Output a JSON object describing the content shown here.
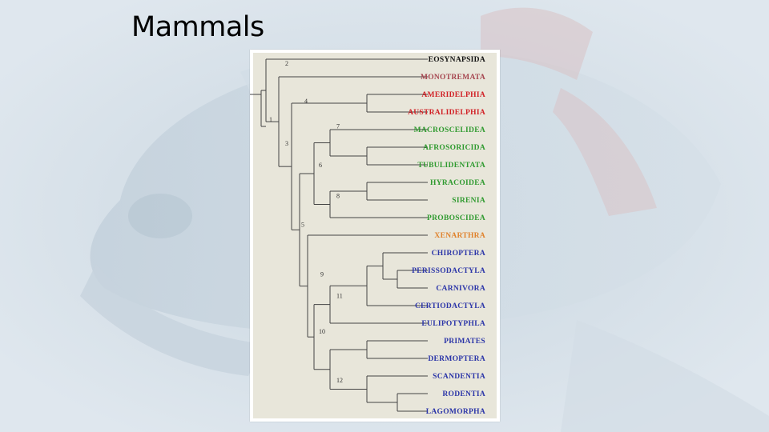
{
  "slide": {
    "title": "Mammals"
  },
  "colors": {
    "outgroup": "#111111",
    "monotremata": "#a5444e",
    "marsupials": "#d11f24",
    "afrotheria": "#2f9a2f",
    "xenarthra": "#e0822c",
    "boreoeutheria": "#2b35a8",
    "branch": "#444444",
    "panel": "#e8e6da"
  },
  "tree": {
    "node_labels": [
      "1",
      "2",
      "3",
      "4",
      "5",
      "6",
      "7",
      "8",
      "9",
      "10",
      "11",
      "12"
    ],
    "taxa": [
      {
        "name": "EOSYNAPSIDA",
        "group": "outgroup"
      },
      {
        "name": "MONOTREMATA",
        "group": "monotremata"
      },
      {
        "name": "AMERIDELPHIA",
        "group": "marsupials"
      },
      {
        "name": "AUSTRALIDELPHIA",
        "group": "marsupials"
      },
      {
        "name": "MACROSCELIDEA",
        "group": "afrotheria"
      },
      {
        "name": "AFROSORICIDA",
        "group": "afrotheria"
      },
      {
        "name": "TUBULIDENTATA",
        "group": "afrotheria"
      },
      {
        "name": "HYRACOIDEA",
        "group": "afrotheria"
      },
      {
        "name": "SIRENIA",
        "group": "afrotheria"
      },
      {
        "name": "PROBOSCIDEA",
        "group": "afrotheria"
      },
      {
        "name": "XENARTHRA",
        "group": "xenarthra"
      },
      {
        "name": "CHIROPTERA",
        "group": "boreoeutheria"
      },
      {
        "name": "PERISSODACTYLA",
        "group": "boreoeutheria"
      },
      {
        "name": "CARNIVORA",
        "group": "boreoeutheria"
      },
      {
        "name": "CERTIODACTYLA",
        "group": "boreoeutheria"
      },
      {
        "name": "EULIPOTYPHLA",
        "group": "boreoeutheria"
      },
      {
        "name": "PRIMATES",
        "group": "boreoeutheria"
      },
      {
        "name": "DERMOPTERA",
        "group": "boreoeutheria"
      },
      {
        "name": "SCANDENTIA",
        "group": "boreoeutheria"
      },
      {
        "name": "RODENTIA",
        "group": "boreoeutheria"
      },
      {
        "name": "LAGOMORPHA",
        "group": "boreoeutheria"
      }
    ]
  }
}
